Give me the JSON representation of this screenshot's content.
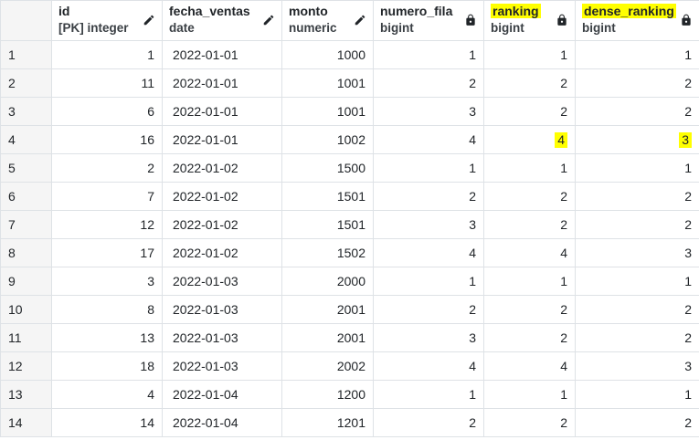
{
  "columns": [
    {
      "name": "",
      "type": "",
      "icon": "none"
    },
    {
      "name": "id",
      "type": "[PK] integer",
      "icon": "pencil-icon",
      "highlight": false
    },
    {
      "name": "fecha_ventas",
      "type": "date",
      "icon": "pencil-icon",
      "highlight": false
    },
    {
      "name": "monto",
      "type": "numeric",
      "icon": "pencil-icon",
      "highlight": false
    },
    {
      "name": "numero_fila",
      "type": "bigint",
      "icon": "lock-icon",
      "highlight": false
    },
    {
      "name": "ranking",
      "type": "bigint",
      "icon": "lock-icon",
      "highlight": true
    },
    {
      "name": "dense_ranking",
      "type": "bigint",
      "icon": "lock-icon",
      "highlight": true
    }
  ],
  "rows": [
    [
      "1",
      "1",
      "2022-01-01",
      "1000",
      "1",
      "1",
      "1"
    ],
    [
      "2",
      "11",
      "2022-01-01",
      "1001",
      "2",
      "2",
      "2"
    ],
    [
      "3",
      "6",
      "2022-01-01",
      "1001",
      "3",
      "2",
      "2"
    ],
    [
      "4",
      "16",
      "2022-01-01",
      "1002",
      "4",
      "4",
      "3"
    ],
    [
      "5",
      "2",
      "2022-01-02",
      "1500",
      "1",
      "1",
      "1"
    ],
    [
      "6",
      "7",
      "2022-01-02",
      "1501",
      "2",
      "2",
      "2"
    ],
    [
      "7",
      "12",
      "2022-01-02",
      "1501",
      "3",
      "2",
      "2"
    ],
    [
      "8",
      "17",
      "2022-01-02",
      "1502",
      "4",
      "4",
      "3"
    ],
    [
      "9",
      "3",
      "2022-01-03",
      "2000",
      "1",
      "1",
      "1"
    ],
    [
      "10",
      "8",
      "2022-01-03",
      "2001",
      "2",
      "2",
      "2"
    ],
    [
      "11",
      "13",
      "2022-01-03",
      "2001",
      "3",
      "2",
      "2"
    ],
    [
      "12",
      "18",
      "2022-01-03",
      "2002",
      "4",
      "4",
      "3"
    ],
    [
      "13",
      "4",
      "2022-01-04",
      "1200",
      "1",
      "1",
      "1"
    ],
    [
      "14",
      "14",
      "2022-01-04",
      "1201",
      "2",
      "2",
      "2"
    ]
  ],
  "highlighted_cells": [
    [
      3,
      5
    ],
    [
      3,
      6
    ]
  ],
  "colors": {
    "highlight": "#ffff00",
    "grid": "#dee2e6",
    "rownum_bg": "#f5f5f5"
  }
}
